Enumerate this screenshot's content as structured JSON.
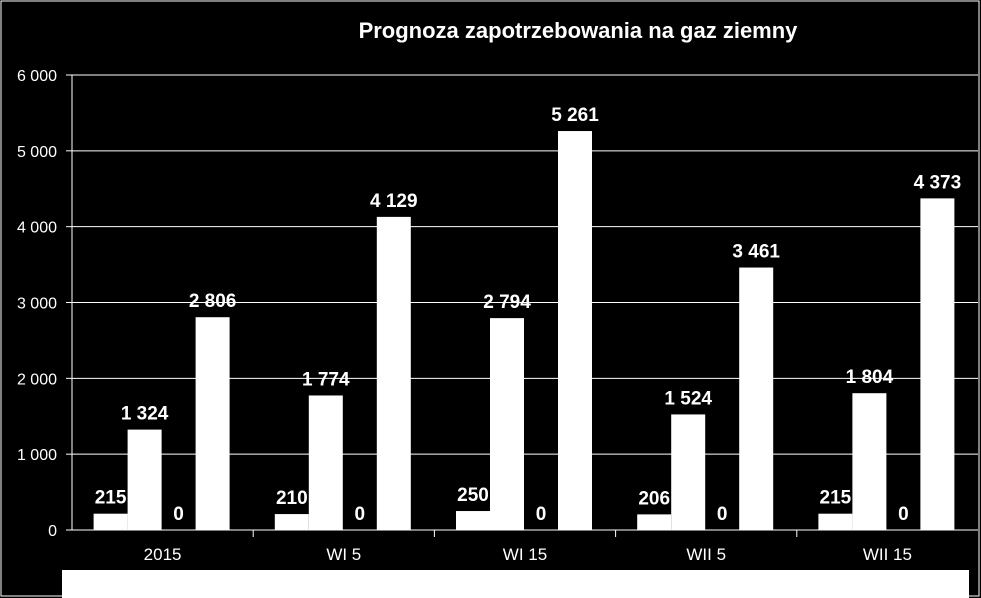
{
  "chart_data": {
    "type": "bar",
    "title": "Prognoza zapotrzebowania na gaz ziemny",
    "xlabel": "",
    "ylabel": "",
    "categories": [
      "2015",
      "WI 5",
      "WI 15",
      "WII 5",
      "WII 15"
    ],
    "series": [
      {
        "values": [
          215,
          210,
          250,
          206,
          215
        ],
        "labels": [
          "215",
          "210",
          "250",
          "206",
          "215"
        ]
      },
      {
        "values": [
          1324,
          1774,
          2794,
          1524,
          1804
        ],
        "labels": [
          "1 324",
          "1 774",
          "2 794",
          "1 524",
          "1 804"
        ]
      },
      {
        "values": [
          0,
          0,
          0,
          0,
          0
        ],
        "labels": [
          "0",
          "0",
          "0",
          "0",
          "0"
        ]
      },
      {
        "values": [
          2806,
          4129,
          5261,
          3461,
          4373
        ],
        "labels": [
          "2 806",
          "4 129",
          "5 261",
          "3 461",
          "4 373"
        ]
      }
    ],
    "ylim": [
      0,
      6000
    ],
    "yticks": [
      0,
      1000,
      2000,
      3000,
      4000,
      5000,
      6000
    ],
    "ytick_labels": [
      "0",
      "1 000",
      "2 000",
      "3 000",
      "4 000",
      "5 000",
      "6 000"
    ],
    "grid": true,
    "legend": "none",
    "colors": {
      "background": "#000000",
      "bar": "#ffffff",
      "text": "#ffffff",
      "grid": "#ffffff"
    }
  }
}
